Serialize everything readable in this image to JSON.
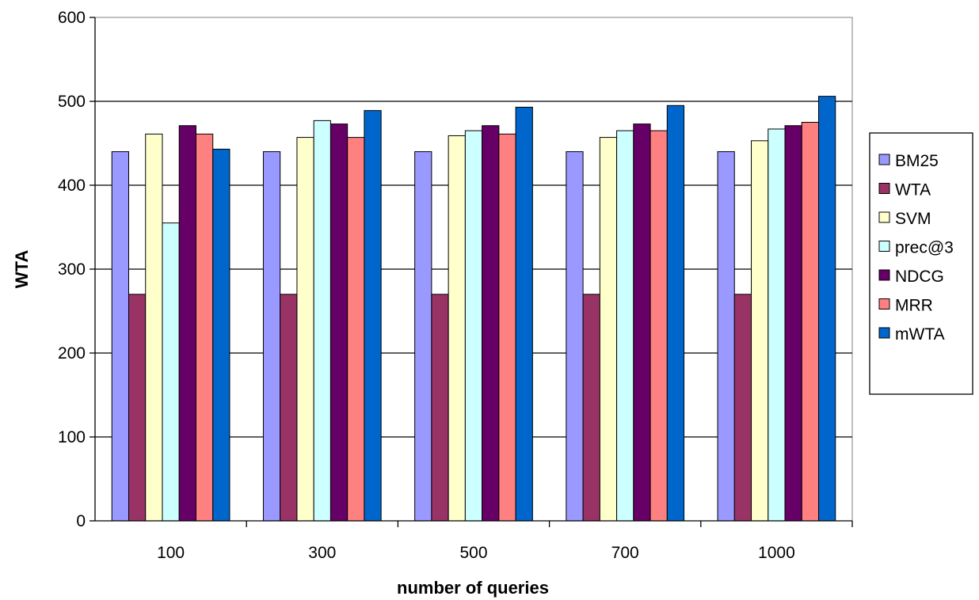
{
  "chart_data": {
    "type": "bar",
    "title": "",
    "xlabel": "number of queries",
    "ylabel": "WTA",
    "categories": [
      "100",
      "300",
      "500",
      "700",
      "1000"
    ],
    "ylim": [
      0,
      600
    ],
    "yticks": [
      "0",
      "100",
      "200",
      "300",
      "400",
      "500",
      "600"
    ],
    "grid": true,
    "legend": "right",
    "series": [
      {
        "name": "BM25",
        "color": "#9999ff",
        "values": [
          440,
          440,
          440,
          440,
          440
        ]
      },
      {
        "name": "WTA",
        "color": "#993366",
        "values": [
          270,
          270,
          270,
          270,
          270
        ]
      },
      {
        "name": "SVM",
        "color": "#ffffcc",
        "values": [
          461,
          457,
          459,
          457,
          453
        ]
      },
      {
        "name": "prec@3",
        "color": "#ccffff",
        "values": [
          355,
          477,
          465,
          465,
          467
        ]
      },
      {
        "name": "NDCG",
        "color": "#660066",
        "values": [
          471,
          473,
          471,
          473,
          471
        ]
      },
      {
        "name": "MRR",
        "color": "#ff8080",
        "values": [
          461,
          457,
          461,
          465,
          475
        ]
      },
      {
        "name": "mWTA",
        "color": "#0066cc",
        "values": [
          443,
          489,
          493,
          495,
          506
        ]
      }
    ]
  }
}
